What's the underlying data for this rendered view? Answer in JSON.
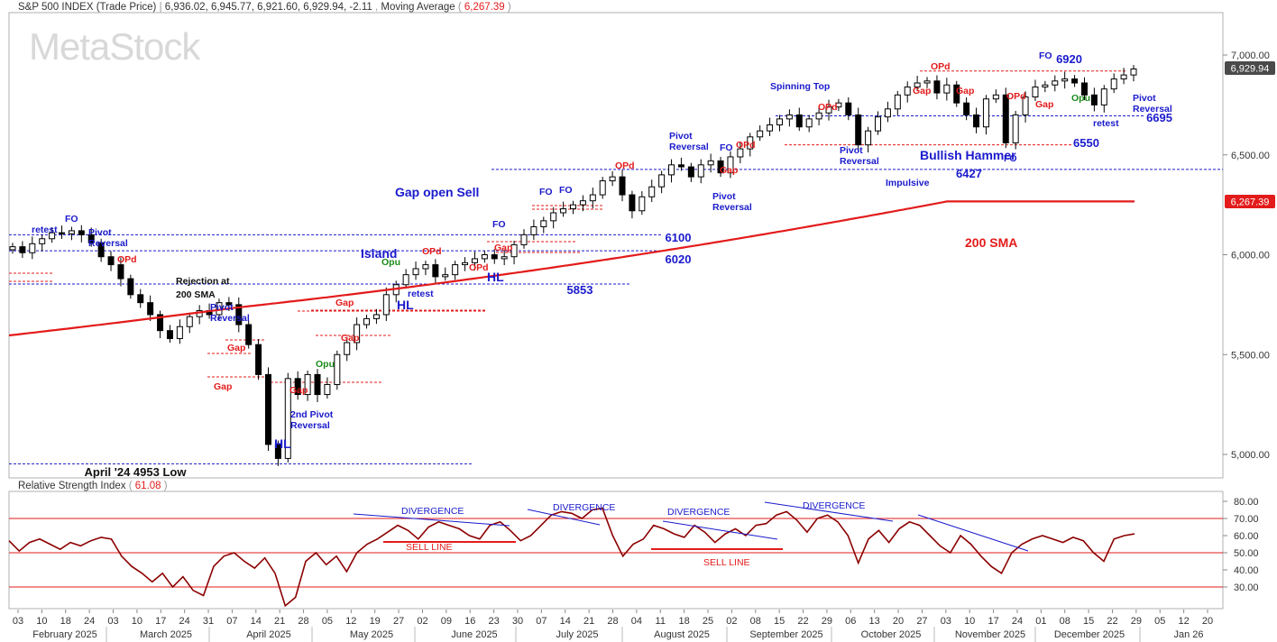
{
  "header": {
    "symbol": "S&P 500 INDEX (Trade Price)",
    "ohlc": [
      "6,936.02",
      "6,945.77",
      "6,921.60",
      "6,929.94",
      "-2.11"
    ],
    "ma_label": "Moving Average",
    "ma_value": "6,267.39"
  },
  "watermark": "MetaStock",
  "rsi_header": {
    "label": "Relative Strength Index",
    "value": "61.08"
  },
  "price_badges": {
    "last": "6,929.94",
    "ma": "6,267.39"
  },
  "colors": {
    "sma": "#e31b1b",
    "rsi": "#8b0000",
    "annot_blue": "#1a1acc",
    "annot_red": "#e31b1b",
    "annot_green": "#1a8a1a",
    "last_badge": "#4a4a4a",
    "ma_badge": "#e31b1b"
  },
  "chart_data": [
    {
      "type": "candlestick",
      "title": "S&P 500 INDEX (Trade Price)",
      "y_axis": {
        "min": 4850,
        "max": 7100,
        "ticks": [
          "7,000.00",
          "6,500.00",
          "6,000.00",
          "5,500.00",
          "5,000.00"
        ],
        "tick_values": [
          7000,
          6500,
          6000,
          5500,
          5000
        ]
      },
      "x_axis": {
        "day_ticks": [
          "03",
          "10",
          "18",
          "24",
          "03",
          "10",
          "17",
          "24",
          "31",
          "07",
          "14",
          "21",
          "28",
          "05",
          "12",
          "19",
          "27",
          "02",
          "09",
          "16",
          "23",
          "30",
          "07",
          "14",
          "21",
          "28",
          "04",
          "11",
          "18",
          "25",
          "02",
          "08",
          "15",
          "22",
          "29",
          "06",
          "13",
          "20",
          "27",
          "03",
          "10",
          "17",
          "24",
          "01",
          "08",
          "15",
          "22",
          "29",
          "05",
          "12",
          "20"
        ],
        "months": [
          "February 2025",
          "March 2025",
          "April 2025",
          "May 2025",
          "June 2025",
          "July 2025",
          "August 2025",
          "September 2025",
          "October 2025",
          "November 2025",
          "December 2025",
          "Jan 26"
        ]
      },
      "series": [
        {
          "name": "S&P 500",
          "kind": "ohlc",
          "segments": [
            [
              0,
              6040
            ],
            [
              1,
              6010
            ],
            [
              2,
              6055
            ],
            [
              3,
              6080
            ],
            [
              4,
              6110
            ],
            [
              5,
              6105
            ],
            [
              6,
              6120
            ],
            [
              7,
              6100
            ],
            [
              8,
              6060
            ],
            [
              9,
              5990
            ],
            [
              10,
              5950
            ],
            [
              11,
              5880
            ],
            [
              12,
              5800
            ],
            [
              13,
              5760
            ],
            [
              14,
              5700
            ],
            [
              15,
              5620
            ],
            [
              16,
              5580
            ],
            [
              17,
              5640
            ],
            [
              18,
              5690
            ],
            [
              19,
              5720
            ],
            [
              20,
              5700
            ],
            [
              21,
              5760
            ],
            [
              22,
              5750
            ],
            [
              23,
              5650
            ],
            [
              24,
              5550
            ],
            [
              25,
              5400
            ],
            [
              26,
              5050
            ],
            [
              27,
              4980
            ],
            [
              28,
              5380
            ],
            [
              29,
              5300
            ],
            [
              30,
              5400
            ],
            [
              31,
              5300
            ],
            [
              32,
              5350
            ],
            [
              33,
              5500
            ],
            [
              34,
              5560
            ],
            [
              35,
              5650
            ],
            [
              36,
              5680
            ],
            [
              37,
              5700
            ],
            [
              38,
              5800
            ],
            [
              39,
              5850
            ],
            [
              40,
              5900
            ],
            [
              41,
              5930
            ],
            [
              42,
              5950
            ],
            [
              43,
              5890
            ],
            [
              44,
              5900
            ],
            [
              45,
              5950
            ],
            [
              46,
              5960
            ],
            [
              47,
              5980
            ],
            [
              48,
              6000
            ],
            [
              49,
              5980
            ],
            [
              50,
              5990
            ],
            [
              51,
              6050
            ],
            [
              52,
              6100
            ],
            [
              53,
              6140
            ],
            [
              54,
              6170
            ],
            [
              55,
              6210
            ],
            [
              56,
              6230
            ],
            [
              57,
              6250
            ],
            [
              58,
              6270
            ],
            [
              59,
              6300
            ],
            [
              60,
              6370
            ],
            [
              61,
              6390
            ],
            [
              62,
              6300
            ],
            [
              63,
              6220
            ],
            [
              64,
              6290
            ],
            [
              65,
              6340
            ],
            [
              66,
              6400
            ],
            [
              67,
              6450
            ],
            [
              68,
              6440
            ],
            [
              69,
              6390
            ],
            [
              70,
              6450
            ],
            [
              71,
              6470
            ],
            [
              72,
              6410
            ],
            [
              73,
              6490
            ],
            [
              74,
              6530
            ],
            [
              75,
              6590
            ],
            [
              76,
              6620
            ],
            [
              77,
              6650
            ],
            [
              78,
              6680
            ],
            [
              79,
              6700
            ],
            [
              80,
              6640
            ],
            [
              81,
              6680
            ],
            [
              82,
              6710
            ],
            [
              83,
              6740
            ],
            [
              84,
              6760
            ],
            [
              85,
              6700
            ],
            [
              86,
              6550
            ],
            [
              87,
              6620
            ],
            [
              88,
              6690
            ],
            [
              89,
              6730
            ],
            [
              90,
              6800
            ],
            [
              91,
              6840
            ],
            [
              92,
              6860
            ],
            [
              93,
              6870
            ],
            [
              94,
              6810
            ],
            [
              95,
              6850
            ],
            [
              96,
              6760
            ],
            [
              97,
              6700
            ],
            [
              98,
              6640
            ],
            [
              99,
              6780
            ],
            [
              100,
              6800
            ],
            [
              101,
              6560
            ],
            [
              102,
              6700
            ],
            [
              103,
              6790
            ],
            [
              104,
              6840
            ],
            [
              105,
              6850
            ],
            [
              106,
              6870
            ],
            [
              107,
              6880
            ],
            [
              108,
              6860
            ],
            [
              109,
              6800
            ],
            [
              110,
              6750
            ],
            [
              111,
              6830
            ],
            [
              112,
              6880
            ],
            [
              113,
              6900
            ],
            [
              114,
              6930
            ]
          ]
        },
        {
          "name": "200 SMA",
          "kind": "line"
        }
      ],
      "annotations": {
        "hlines": [
          {
            "label": "6920",
            "value": 6920,
            "color": "red"
          },
          {
            "label": "6695",
            "value": 6695,
            "color": "blue"
          },
          {
            "label": "6550",
            "value": 6550,
            "color": "red"
          },
          {
            "label": "6427",
            "value": 6427,
            "color": "blue"
          },
          {
            "label": "6100",
            "value": 6100,
            "color": "blue"
          },
          {
            "label": "6020",
            "value": 6020,
            "color": "blue"
          },
          {
            "label": "5853",
            "value": 5853,
            "color": "blue"
          },
          {
            "label": "April '24 4953 Low",
            "value": 4953,
            "color": "blue"
          }
        ],
        "texts": [
          "retest",
          "FO",
          "Pivot",
          "Reversal",
          "OPd",
          "Rejection at",
          "200 SMA",
          "Gap",
          "2nd Pivot",
          "HL",
          "Opu",
          "Island",
          "Gap open Sell",
          "Spinning Top",
          "Impulsive",
          "Bullish Hammer",
          "200 SMA"
        ]
      }
    },
    {
      "type": "line",
      "title": "Relative Strength Index",
      "y_axis": {
        "min": 20,
        "max": 85,
        "ticks": [
          "80.00",
          "70.00",
          "60.00",
          "50.00",
          "40.00",
          "30.00"
        ],
        "tick_values": [
          80,
          70,
          60,
          50,
          40,
          30
        ]
      },
      "reference_lines": [
        70,
        50,
        30
      ],
      "last_value": 61.08,
      "annotations": [
        "DIVERGENCE",
        "SELL LINE",
        "DIVERGENCE",
        "DIVERGENCE",
        "SELL LINE",
        "DIVERGENCE"
      ]
    }
  ]
}
